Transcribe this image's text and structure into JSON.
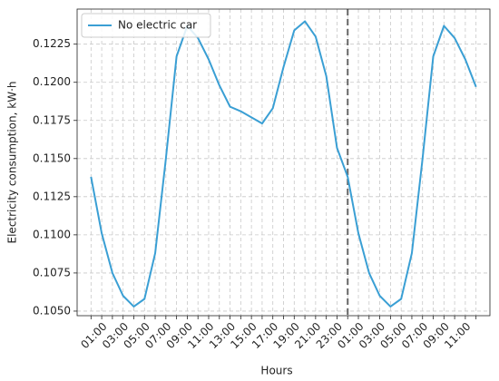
{
  "chart_data": {
    "type": "line",
    "x_label": "Hours",
    "y_label": "Electricity consumption, kW·h",
    "categories": [
      null,
      "01:00",
      null,
      "03:00",
      null,
      "05:00",
      null,
      "07:00",
      null,
      "09:00",
      null,
      "11:00",
      null,
      "13:00",
      null,
      "15:00",
      null,
      "17:00",
      null,
      "19:00",
      null,
      "21:00",
      null,
      "23:00",
      null,
      "01:00",
      null,
      "03:00",
      null,
      "05:00",
      null,
      "07:00",
      null,
      "09:00",
      null,
      "11:00",
      null
    ],
    "series": [
      {
        "name": "No electric car",
        "color": "#3a9fd4",
        "values": [
          0.1138,
          0.1101,
          0.1075,
          0.106,
          0.1053,
          0.1058,
          0.1088,
          0.115,
          0.1217,
          0.1237,
          0.1229,
          0.1215,
          0.1198,
          0.1184,
          0.1181,
          0.1177,
          0.1173,
          0.1183,
          0.121,
          0.1234,
          0.124,
          0.123,
          0.1204,
          0.1157,
          0.1138,
          0.1101,
          0.1075,
          0.106,
          0.1053,
          0.1058,
          0.1088,
          0.115,
          0.1217,
          0.1237,
          0.1229,
          0.1215,
          0.1197
        ]
      }
    ],
    "ylim": [
      0.1047,
      0.1248
    ],
    "yticks": [
      {
        "value": 0.105,
        "label": "0.1050"
      },
      0.1075,
      {
        "value": 0.11,
        "label": "0.1100"
      },
      0.1125,
      {
        "value": 0.115,
        "label": "0.1150"
      },
      0.1175,
      {
        "value": 0.12,
        "label": "0.1200"
      },
      0.1225
    ],
    "grid": true,
    "legend": "upper-left",
    "vline_at": 24,
    "vline_color": "#666666"
  }
}
